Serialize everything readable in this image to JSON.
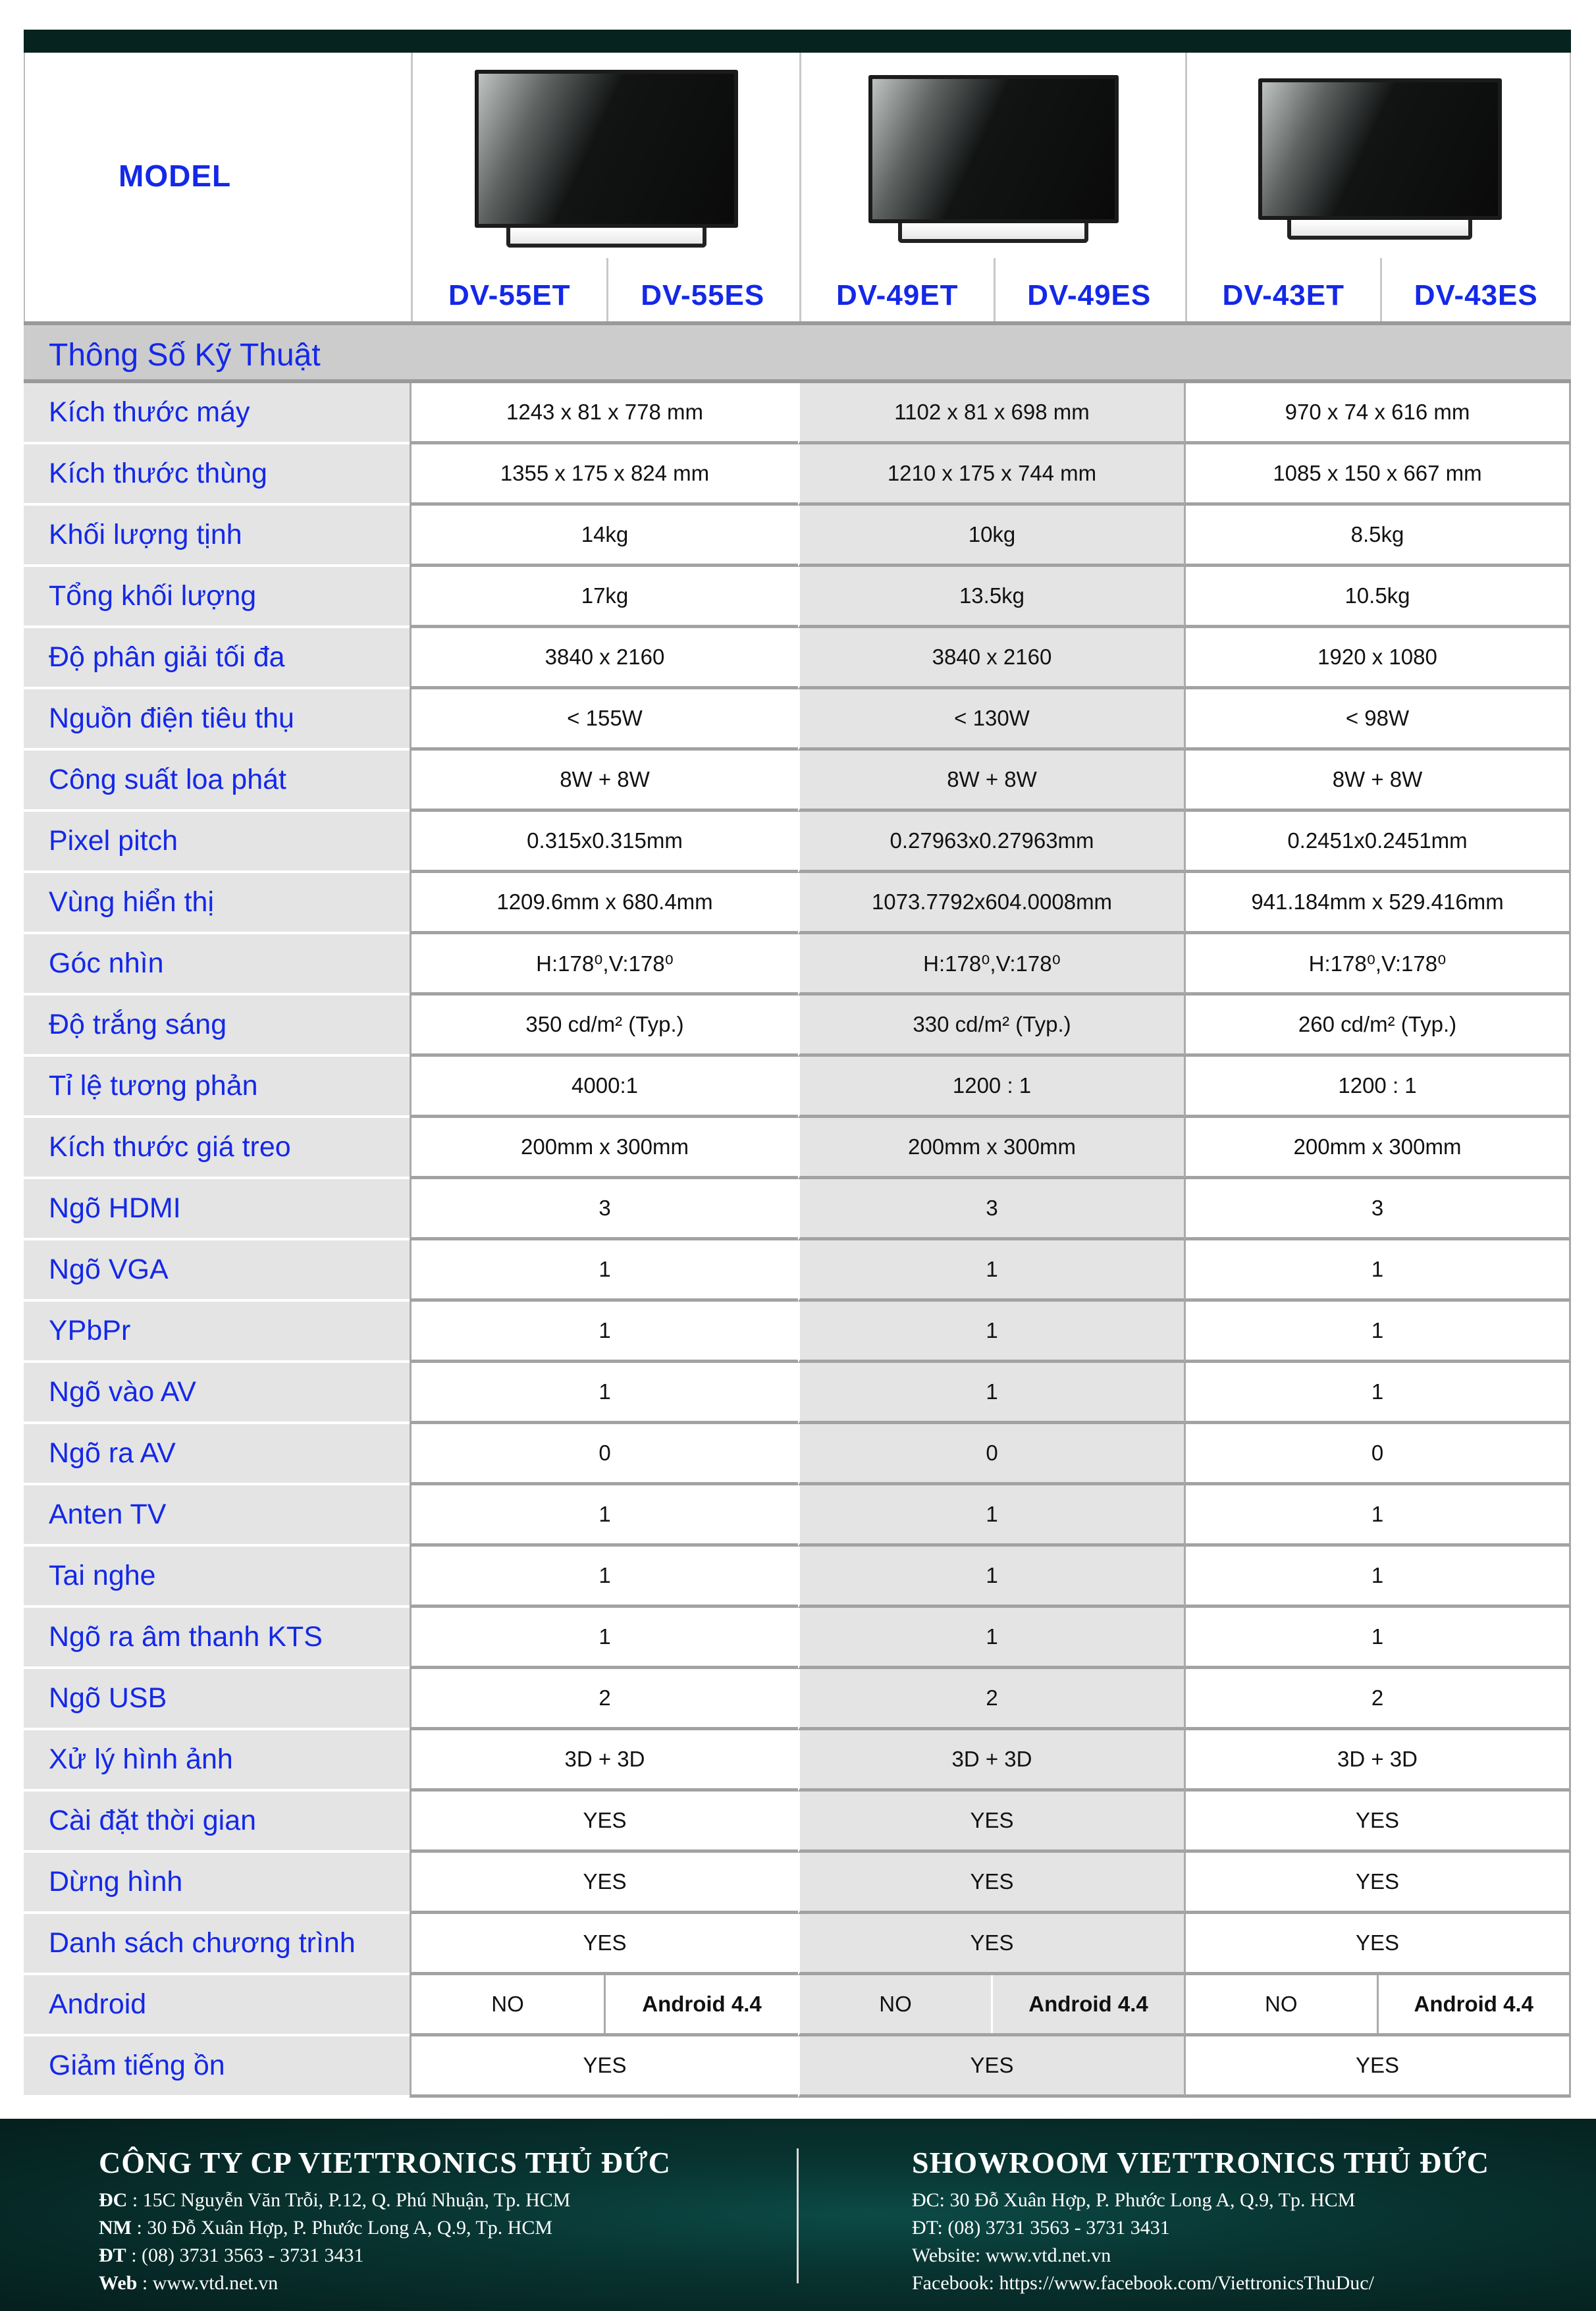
{
  "header": {
    "model_label": "MODEL",
    "groups": [
      {
        "models": [
          "DV-55ET",
          "DV-55ES"
        ],
        "image": "tv-55"
      },
      {
        "models": [
          "DV-49ET",
          "DV-49ES"
        ],
        "image": "tv-49"
      },
      {
        "models": [
          "DV-43ET",
          "DV-43ES"
        ],
        "image": "tv-43"
      }
    ]
  },
  "section_title": "Thông Số Kỹ Thuật",
  "rows": [
    {
      "label": "Kích thước máy",
      "values": [
        "1243 x 81 x 778 mm",
        "1102 x 81 x 698 mm",
        "970 x 74 x 616 mm"
      ]
    },
    {
      "label": "Kích thước thùng",
      "values": [
        "1355 x 175 x 824 mm",
        "1210 x 175 x 744 mm",
        "1085 x 150 x 667 mm"
      ]
    },
    {
      "label": "Khối lượng tịnh",
      "values": [
        "14kg",
        "10kg",
        "8.5kg"
      ]
    },
    {
      "label": "Tổng khối lượng",
      "values": [
        "17kg",
        "13.5kg",
        "10.5kg"
      ]
    },
    {
      "label": "Độ phân giải tối đa",
      "values": [
        "3840 x 2160",
        "3840 x 2160",
        "1920 x 1080"
      ]
    },
    {
      "label": "Nguồn điện tiêu thụ",
      "values": [
        "< 155W",
        "< 130W",
        "< 98W"
      ]
    },
    {
      "label": "Công suất loa phát",
      "values": [
        "8W + 8W",
        "8W + 8W",
        "8W + 8W"
      ]
    },
    {
      "label": "Pixel pitch",
      "values": [
        "0.315x0.315mm",
        "0.27963x0.27963mm",
        "0.2451x0.2451mm"
      ]
    },
    {
      "label": "Vùng hiển thị",
      "values": [
        "1209.6mm x 680.4mm",
        "1073.7792x604.0008mm",
        "941.184mm x 529.416mm"
      ]
    },
    {
      "label": "Góc nhìn",
      "values": [
        "H:178⁰,V:178⁰",
        "H:178⁰,V:178⁰",
        "H:178⁰,V:178⁰"
      ]
    },
    {
      "label": "Độ trắng sáng",
      "values": [
        "350 cd/m² (Typ.)",
        "330 cd/m² (Typ.)",
        "260 cd/m² (Typ.)"
      ]
    },
    {
      "label": "Tỉ lệ tương phản",
      "values": [
        "4000:1",
        "1200 : 1",
        "1200 : 1"
      ]
    },
    {
      "label": "Kích thước giá treo",
      "values": [
        "200mm x 300mm",
        "200mm x 300mm",
        "200mm x 300mm"
      ]
    },
    {
      "label": "Ngõ HDMI",
      "values": [
        "3",
        "3",
        "3"
      ]
    },
    {
      "label": "Ngõ VGA",
      "values": [
        "1",
        "1",
        "1"
      ]
    },
    {
      "label": "YPbPr",
      "values": [
        "1",
        "1",
        "1"
      ]
    },
    {
      "label": "Ngõ vào AV",
      "values": [
        "1",
        "1",
        "1"
      ]
    },
    {
      "label": "Ngõ ra AV",
      "values": [
        "0",
        "0",
        "0"
      ]
    },
    {
      "label": "Anten TV",
      "values": [
        "1",
        "1",
        "1"
      ]
    },
    {
      "label": "Tai nghe",
      "values": [
        "1",
        "1",
        "1"
      ]
    },
    {
      "label": "Ngõ ra âm thanh KTS",
      "values": [
        "1",
        "1",
        "1"
      ]
    },
    {
      "label": "Ngõ USB",
      "values": [
        "2",
        "2",
        "2"
      ]
    },
    {
      "label": "Xử lý hình ảnh",
      "values": [
        "3D + 3D",
        "3D + 3D",
        "3D + 3D"
      ]
    },
    {
      "label": "Cài đặt thời gian",
      "values": [
        "YES",
        "YES",
        "YES"
      ]
    },
    {
      "label": "Dừng hình",
      "values": [
        "YES",
        "YES",
        "YES"
      ]
    },
    {
      "label": "Danh sách chương trình",
      "values": [
        "YES",
        "YES",
        "YES"
      ]
    },
    {
      "label": "Android",
      "split": [
        [
          "NO",
          "Android 4.4"
        ],
        [
          "NO",
          "Android 4.4"
        ],
        [
          "NO",
          "Android 4.4"
        ]
      ]
    },
    {
      "label": "Giảm tiếng ồn",
      "values": [
        "YES",
        "YES",
        "YES"
      ]
    }
  ],
  "footer": {
    "company": {
      "title": "CÔNG TY CP VIETTRONICS THỦ ĐỨC",
      "lines": [
        {
          "key": "ĐC",
          "text": " : 15C Nguyễn Văn Trỗi, P.12, Q. Phú Nhuận, Tp. HCM"
        },
        {
          "key": "NM",
          "text": " : 30 Đỗ Xuân Hợp, P. Phước Long A, Q.9, Tp. HCM"
        },
        {
          "key": "ĐT",
          "text": " : (08) 3731 3563 - 3731 3431"
        },
        {
          "key": "Web",
          "text": " : www.vtd.net.vn"
        }
      ]
    },
    "showroom": {
      "title": "SHOWROOM VIETTRONICS THỦ ĐỨC",
      "lines": [
        "ĐC: 30 Đỗ Xuân Hợp, P. Phước Long A, Q.9, Tp. HCM",
        "ĐT: (08) 3731 3563 - 3731 3431",
        "Website: www.vtd.net.vn",
        "Facebook: https://www.facebook.com/ViettronicsThuDuc/"
      ]
    }
  }
}
